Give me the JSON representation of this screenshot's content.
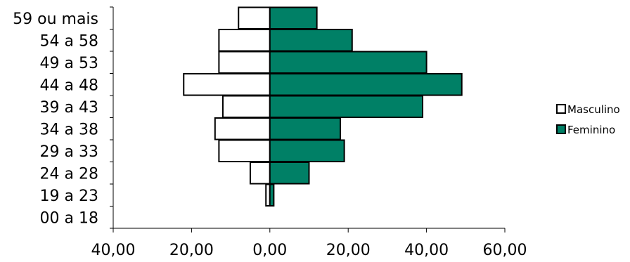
{
  "chart_data": {
    "type": "bar",
    "orientation": "horizontal",
    "categories": [
      "00 a 18",
      "19 a 23",
      "24 a 28",
      "29 a 33",
      "34 a 38",
      "39 a 43",
      "44 a 48",
      "49 a 53",
      "54 a 58",
      "59 ou mais"
    ],
    "series": [
      {
        "name": "Masculino",
        "values": [
          0,
          1,
          5,
          13,
          14,
          12,
          22,
          13,
          13,
          8
        ],
        "direction": "left",
        "color": "#ffffff",
        "stroke": "#000000"
      },
      {
        "name": "Feminino",
        "values": [
          0,
          1,
          10,
          19,
          18,
          39,
          49,
          40,
          21,
          12
        ],
        "direction": "right",
        "color": "#008066",
        "stroke": "#000000"
      }
    ],
    "xlim": [
      -40,
      60
    ],
    "x_ticks": [
      -40,
      -20,
      0,
      20,
      40,
      60
    ],
    "x_tick_labels": [
      "40,00",
      "20,00",
      "0,00",
      "20,00",
      "40,00",
      "60,00"
    ],
    "title": "",
    "xlabel": "",
    "ylabel": "",
    "grid": false,
    "legend": "right"
  }
}
